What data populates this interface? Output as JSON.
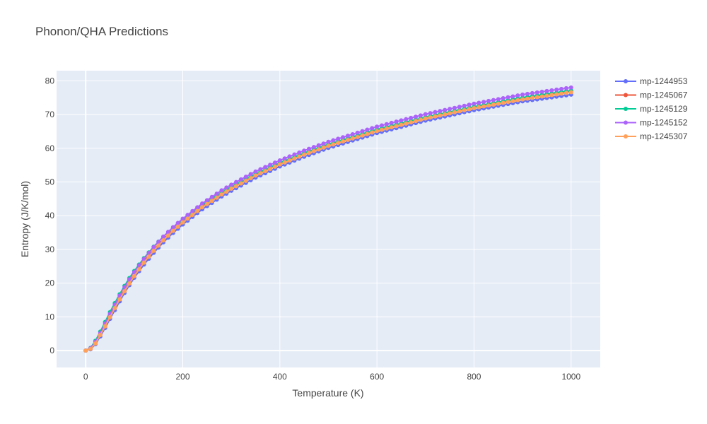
{
  "chart_data": {
    "type": "line",
    "title": "Phonon/QHA Predictions",
    "xlabel": "Temperature (K)",
    "ylabel": "Entropy (J/K/mol)",
    "xlim": [
      -60,
      1060
    ],
    "ylim": [
      -5,
      83
    ],
    "xticks": [
      0,
      200,
      400,
      600,
      800,
      1000
    ],
    "yticks": [
      0,
      10,
      20,
      30,
      40,
      50,
      60,
      70,
      80
    ],
    "grid": true,
    "legend_position": "top-right",
    "plot_background": "#E5ECF6",
    "x_step": 10,
    "x_max": 1000,
    "series": [
      {
        "name": "mp-1244953",
        "color": "#636EFA",
        "x": [
          0,
          10,
          20,
          30,
          40,
          50,
          60,
          70,
          80,
          90,
          100,
          120,
          140,
          160,
          180,
          200,
          240,
          280,
          300,
          350,
          400,
          450,
          500,
          600,
          700,
          800,
          900,
          1000
        ],
        "values": [
          0,
          0.4,
          1.9,
          4.2,
          6.7,
          9.4,
          12.0,
          14.6,
          17.1,
          19.4,
          21.6,
          25.5,
          29.0,
          32.1,
          34.9,
          37.4,
          41.9,
          45.7,
          47.4,
          51.3,
          54.6,
          57.5,
          60.1,
          64.5,
          68.2,
          71.3,
          73.9,
          75.9
        ]
      },
      {
        "name": "mp-1245067",
        "color": "#EF553B",
        "x": [
          0,
          10,
          20,
          30,
          40,
          50,
          60,
          70,
          80,
          90,
          100,
          120,
          140,
          160,
          180,
          200,
          240,
          280,
          300,
          350,
          400,
          450,
          500,
          600,
          700,
          800,
          900,
          1000
        ],
        "values": [
          0,
          0.6,
          2.3,
          4.8,
          7.4,
          10.1,
          12.8,
          15.4,
          17.9,
          20.2,
          22.4,
          26.4,
          29.9,
          33.0,
          35.8,
          38.3,
          42.8,
          46.6,
          48.3,
          52.2,
          55.5,
          58.4,
          61.0,
          65.4,
          69.1,
          72.2,
          74.9,
          77.0
        ]
      },
      {
        "name": "mp-1245129",
        "color": "#00CC96",
        "x": [
          0,
          10,
          20,
          30,
          40,
          50,
          60,
          70,
          80,
          90,
          100,
          120,
          140,
          160,
          180,
          200,
          240,
          280,
          300,
          350,
          400,
          450,
          500,
          600,
          700,
          800,
          900,
          1000
        ],
        "values": [
          0,
          0.8,
          2.9,
          5.6,
          8.5,
          11.4,
          14.1,
          16.7,
          19.2,
          21.5,
          23.6,
          27.4,
          30.8,
          33.8,
          36.4,
          38.8,
          43.2,
          46.9,
          48.6,
          52.4,
          55.7,
          58.6,
          61.2,
          65.6,
          69.2,
          72.3,
          75.0,
          77.1
        ]
      },
      {
        "name": "mp-1245152",
        "color": "#AB63FA",
        "x": [
          0,
          10,
          20,
          30,
          40,
          50,
          60,
          70,
          80,
          90,
          100,
          120,
          140,
          160,
          180,
          200,
          240,
          280,
          300,
          350,
          400,
          450,
          500,
          600,
          700,
          800,
          900,
          1000
        ],
        "values": [
          0,
          0.7,
          2.6,
          5.2,
          8.0,
          10.9,
          13.6,
          16.3,
          18.8,
          21.1,
          23.3,
          27.2,
          30.7,
          33.8,
          36.6,
          39.1,
          43.6,
          47.5,
          49.2,
          53.1,
          56.4,
          59.3,
          61.9,
          66.4,
          70.1,
          73.2,
          75.9,
          78.0
        ]
      },
      {
        "name": "mp-1245307",
        "color": "#FFA15A",
        "x": [
          0,
          10,
          20,
          30,
          40,
          50,
          60,
          70,
          80,
          90,
          100,
          120,
          140,
          160,
          180,
          200,
          240,
          280,
          300,
          350,
          400,
          450,
          500,
          600,
          700,
          800,
          900,
          1000
        ],
        "values": [
          0,
          0.5,
          2.1,
          4.6,
          7.2,
          9.9,
          12.6,
          15.2,
          17.6,
          19.9,
          22.1,
          26.1,
          29.6,
          32.7,
          35.5,
          38.0,
          42.5,
          46.3,
          48.0,
          51.9,
          55.2,
          58.1,
          60.7,
          65.1,
          68.8,
          71.9,
          74.5,
          76.6
        ]
      }
    ]
  }
}
